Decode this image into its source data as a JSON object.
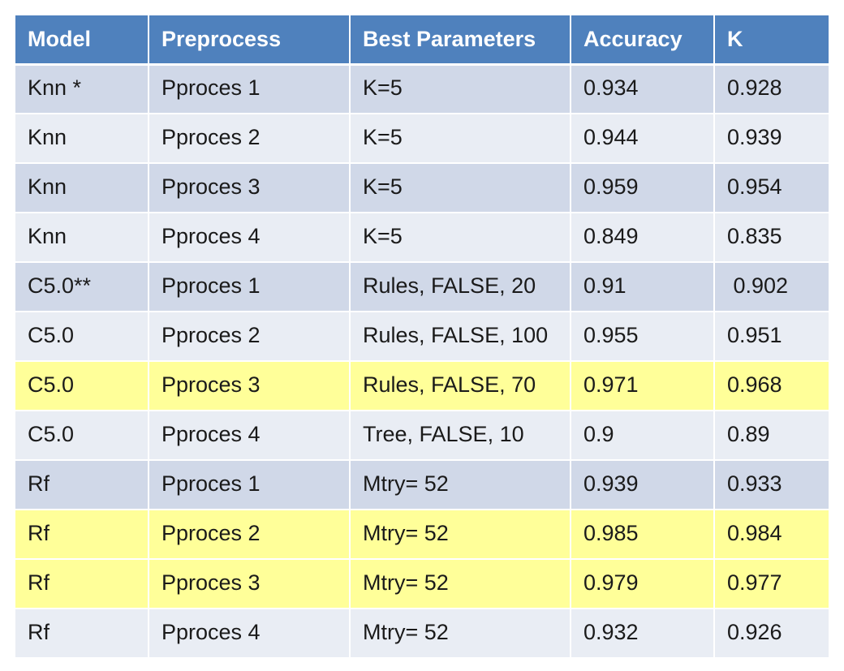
{
  "table": {
    "headers": [
      "Model",
      "Preprocess",
      "Best Parameters",
      "Accuracy",
      "K"
    ],
    "rows": [
      {
        "model": "Knn *",
        "preprocess": "Pproces 1",
        "params": "K=5",
        "accuracy": "0.934",
        "k": "0.928",
        "highlight": false
      },
      {
        "model": "Knn",
        "preprocess": "Pproces 2",
        "params": "K=5",
        "accuracy": "0.944",
        "k": "0.939",
        "highlight": false
      },
      {
        "model": "Knn",
        "preprocess": "Pproces 3",
        "params": "K=5",
        "accuracy": "0.959",
        "k": "0.954",
        "highlight": false
      },
      {
        "model": "Knn",
        "preprocess": "Pproces 4",
        "params": "K=5",
        "accuracy": "0.849",
        "k": "0.835",
        "highlight": false
      },
      {
        "model": "C5.0**",
        "preprocess": "Pproces 1",
        "params": "Rules, FALSE, 20",
        "accuracy": "0.91",
        "k": " 0.902",
        "highlight": false
      },
      {
        "model": "C5.0",
        "preprocess": "Pproces 2",
        "params": "Rules, FALSE, 100",
        "accuracy": "0.955",
        "k": "0.951",
        "highlight": false
      },
      {
        "model": "C5.0",
        "preprocess": "Pproces 3",
        "params": "Rules, FALSE, 70",
        "accuracy": "0.971",
        "k": "0.968",
        "highlight": true
      },
      {
        "model": "C5.0",
        "preprocess": "Pproces 4",
        "params": "Tree, FALSE, 10",
        "accuracy": "0.9",
        "k": "0.89",
        "highlight": false
      },
      {
        "model": "Rf",
        "preprocess": "Pproces 1",
        "params": "Mtry= 52",
        "accuracy": "0.939",
        "k": "0.933",
        "highlight": false
      },
      {
        "model": "Rf",
        "preprocess": "Pproces 2",
        "params": "Mtry= 52",
        "accuracy": "0.985",
        "k": "0.984",
        "highlight": true
      },
      {
        "model": "Rf",
        "preprocess": "Pproces 3",
        "params": "Mtry= 52",
        "accuracy": "0.979",
        "k": "0.977",
        "highlight": true
      },
      {
        "model": "Rf",
        "preprocess": "Pproces 4",
        "params": "Mtry= 52",
        "accuracy": "0.932",
        "k": "0.926",
        "highlight": false
      }
    ]
  },
  "colors": {
    "header_bg": "#4f81bd",
    "header_text": "#ffffff",
    "row_odd": "#d0d8e8",
    "row_even": "#e9edf4",
    "row_highlight": "#ffff99"
  }
}
